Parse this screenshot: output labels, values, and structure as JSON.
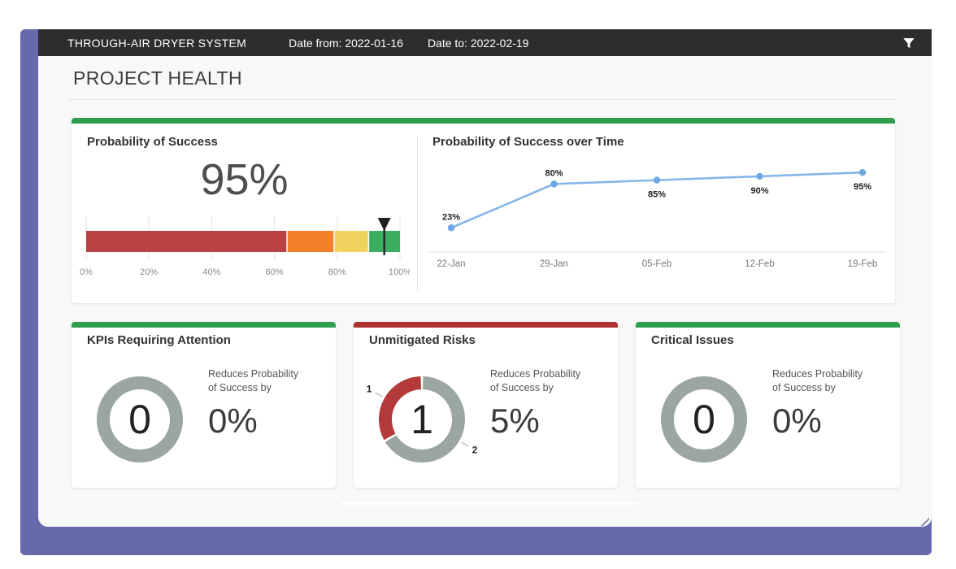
{
  "header": {
    "title": "THROUGH-AIR DRYER SYSTEM",
    "date_from": "Date from: 2022-01-16",
    "date_to": "Date to: 2022-02-19",
    "filter_icon": "funnel-icon"
  },
  "page": {
    "title": "PROJECT HEALTH"
  },
  "colors": {
    "accent_purple": "#666aab",
    "appbar_bg": "#2d2d2d",
    "card_border_green": "#2f9e4e",
    "card_border_red": "#b02f2f",
    "gauge_red": "#b94343",
    "gauge_orange": "#f57e28",
    "gauge_yellow": "#f0d35e",
    "gauge_green": "#3bae60",
    "line_blue": "#85b6e9",
    "donut_gray": "#9aa5a4",
    "donut_red": "#b43a3a"
  },
  "cards": {
    "probability": {
      "title": "Probability of Success",
      "value": "95%"
    },
    "over_time": {
      "title": "Probability of Success over Time"
    },
    "kpis": {
      "title": "KPIs Requiring Attention",
      "count": "0",
      "reduce_line1": "Reduces Probability",
      "reduce_line2": "of Success by",
      "reduce_value": "0%"
    },
    "risks": {
      "title": "Unmitigated Risks",
      "count": "1",
      "reduce_line1": "Reduces Probability",
      "reduce_line2": "of Success by",
      "reduce_value": "5%"
    },
    "issues": {
      "title": "Critical Issues",
      "count": "0",
      "reduce_line1": "Reduces Probability",
      "reduce_line2": "of Success by",
      "reduce_value": "0%"
    }
  },
  "chart_data": [
    {
      "id": "success_gauge",
      "type": "bullet-gauge",
      "title": "Probability of Success",
      "value": 95,
      "unit": "%",
      "axis_range": [
        0,
        100
      ],
      "axis_ticks": [
        0,
        20,
        40,
        60,
        80,
        100
      ],
      "tick_labels": [
        "0%",
        "20%",
        "40%",
        "60%",
        "80%",
        "100%"
      ],
      "bands": [
        {
          "from": 0,
          "to": 64,
          "color": "#b94343"
        },
        {
          "from": 64,
          "to": 79,
          "color": "#f57e28"
        },
        {
          "from": 79,
          "to": 90,
          "color": "#f0d35e"
        },
        {
          "from": 90,
          "to": 100,
          "color": "#3bae60"
        }
      ],
      "marker": 95,
      "grid": true
    },
    {
      "id": "success_over_time",
      "type": "line",
      "title": "Probability of Success over Time",
      "categories": [
        "22-Jan",
        "29-Jan",
        "05-Feb",
        "12-Feb",
        "19-Feb"
      ],
      "values": [
        23,
        80,
        85,
        90,
        95
      ],
      "data_labels": [
        "23%",
        "80%",
        "85%",
        "90%",
        "95%"
      ],
      "label_positions": [
        "above",
        "above",
        "below",
        "below",
        "below"
      ],
      "ylim": [
        0,
        110
      ],
      "grid": false,
      "legend": false,
      "line_color": "#85b6e9",
      "point_color": "#6ea7e2"
    },
    {
      "id": "kpis_donut",
      "type": "pie",
      "donut": true,
      "rotation": 0,
      "slices": [
        {
          "label": "",
          "value": 1,
          "color": "#9aa5a4"
        }
      ],
      "center_text": "0"
    },
    {
      "id": "risks_donut",
      "type": "pie",
      "donut": true,
      "rotation": 240,
      "slices": [
        {
          "label": "1",
          "value": 1,
          "color": "#b43a3a"
        },
        {
          "label": "2",
          "value": 2,
          "color": "#9aa5a4"
        }
      ],
      "center_text": "1"
    },
    {
      "id": "issues_donut",
      "type": "pie",
      "donut": true,
      "rotation": 0,
      "slices": [
        {
          "label": "",
          "value": 1,
          "color": "#9aa5a4"
        }
      ],
      "center_text": "0"
    }
  ]
}
